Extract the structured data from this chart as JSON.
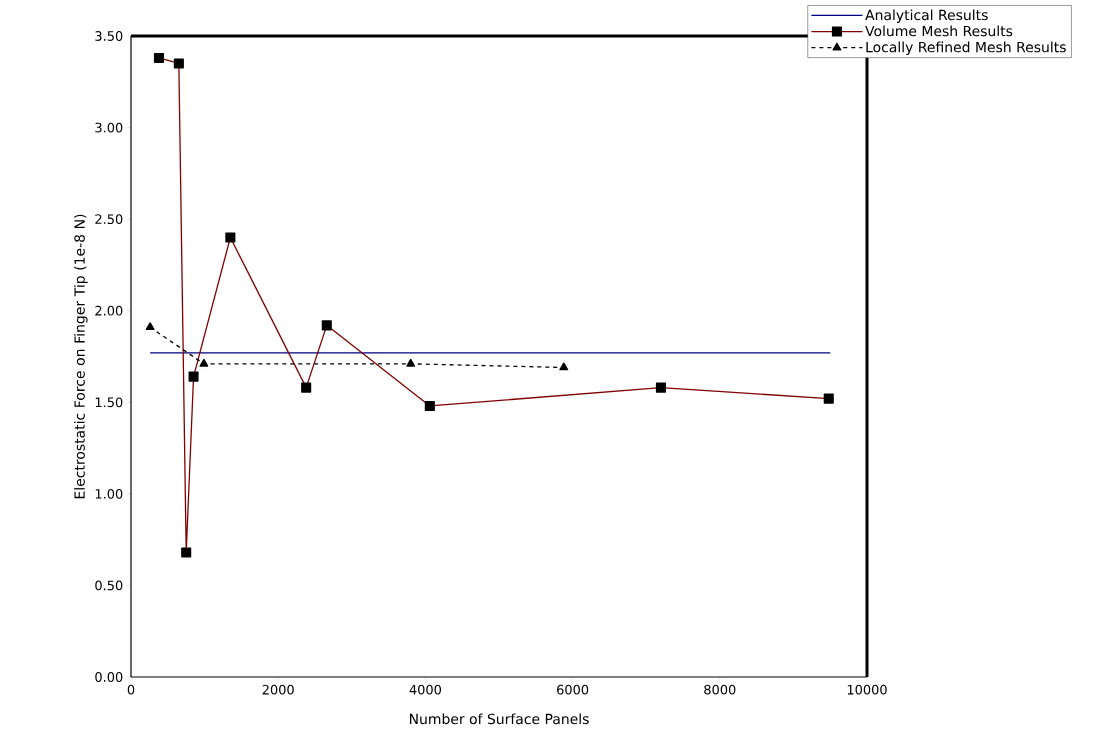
{
  "chart_data": {
    "type": "line",
    "xlabel": "Number of Surface Panels",
    "ylabel": "Electrostatic Force on Finger Tip (1e-8 N)",
    "xlim": [
      0,
      10000
    ],
    "xticks": [
      0,
      2000,
      4000,
      6000,
      8000,
      10000
    ],
    "ylim": [
      0,
      3.5
    ],
    "yticks": [
      {
        "value": 0,
        "label": "0.00"
      },
      {
        "value": 0.5,
        "label": "0.50"
      },
      {
        "value": 1,
        "label": "1.00"
      },
      {
        "value": 1.5,
        "label": "1.50"
      },
      {
        "value": 2,
        "label": "2.00"
      },
      {
        "value": 2.5,
        "label": "2.50"
      },
      {
        "value": 3,
        "label": "3.00"
      },
      {
        "value": 3.5,
        "label": "3.50"
      }
    ],
    "grid": false,
    "legend": "top right",
    "series": [
      {
        "name": "Analytical Results",
        "color": "#000080",
        "x": [
          260,
          9500
        ],
        "values": [
          1.77,
          1.77
        ],
        "marker": "none",
        "line_style": "solid"
      },
      {
        "name": "Volume Mesh Results",
        "color": "#800000",
        "x": [
          380,
          650,
          750,
          850,
          1350,
          2380,
          2660,
          4060,
          7200,
          9480
        ],
        "values": [
          3.38,
          3.35,
          0.68,
          1.64,
          2.4,
          1.58,
          1.92,
          1.48,
          1.58,
          1.52
        ],
        "marker": "square",
        "line_style": "solid"
      },
      {
        "name": "Locally Refined Mesh Results",
        "color": "#000000",
        "x": [
          260,
          990,
          3800,
          5880
        ],
        "values": [
          1.91,
          1.71,
          1.71,
          1.69
        ],
        "marker": "triangle",
        "line_style": "dashed"
      }
    ]
  }
}
